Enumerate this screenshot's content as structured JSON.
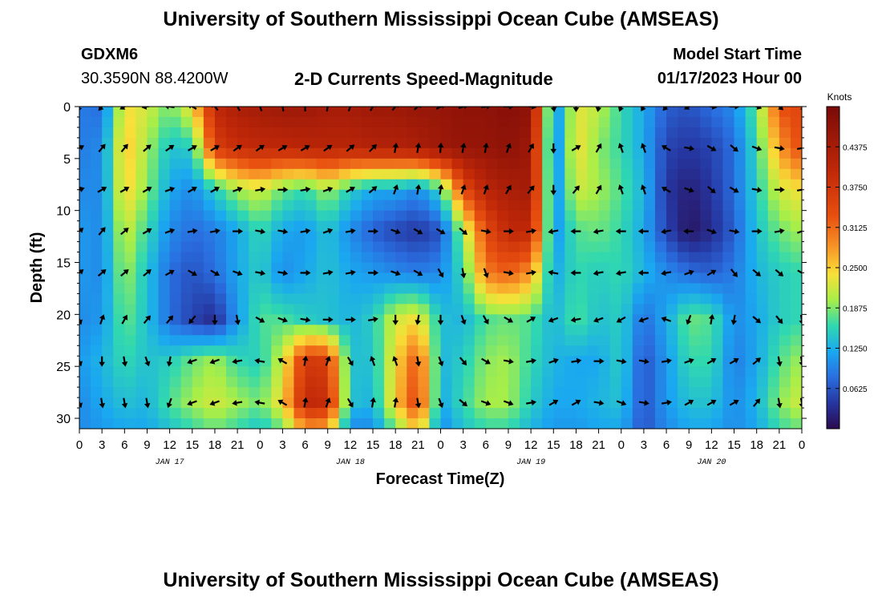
{
  "header": {
    "title": "University of Southern Mississippi Ocean Cube (AMSEAS)",
    "station_id": "GDXM6",
    "coords": "30.3590N  88.4200W",
    "product": "2-D Currents Speed-Magnitude",
    "model_start_label": "Model Start Time",
    "model_start_value": "01/17/2023 Hour 00"
  },
  "footer": {
    "title": "University of Southern Mississippi Ocean Cube (AMSEAS)"
  },
  "chart_data": {
    "type": "heatmap",
    "title": "2-D Currents Speed-Magnitude",
    "xlabel": "Forecast Time(Z)",
    "ylabel": "Depth (ft)",
    "x_tick_labels": [
      "0",
      "3",
      "6",
      "9",
      "12",
      "15",
      "18",
      "21",
      "0",
      "3",
      "6",
      "9",
      "12",
      "15",
      "18",
      "21",
      "0",
      "3",
      "6",
      "9",
      "12",
      "15",
      "18",
      "21",
      "0",
      "3",
      "6",
      "9",
      "12",
      "15",
      "18",
      "21",
      "0"
    ],
    "x_range_hours": [
      0,
      96
    ],
    "date_labels": [
      {
        "label": "JAN 17",
        "hour": 12
      },
      {
        "label": "JAN 18",
        "hour": 36
      },
      {
        "label": "JAN 19",
        "hour": 60
      },
      {
        "label": "JAN 20",
        "hour": 84
      }
    ],
    "y_ticks": [
      0,
      5,
      10,
      15,
      20,
      25,
      30
    ],
    "y_range_ft": [
      0,
      31
    ],
    "arrow_depths_ft": [
      0,
      4,
      8,
      12,
      16,
      20.5,
      24.5,
      28.5
    ],
    "colorbar": {
      "unit": "Knots",
      "range": [
        0,
        0.5
      ],
      "ticks": [
        "0.4375",
        "0.3750",
        "0.3125",
        "0.2500",
        "0.1875",
        "0.1250",
        "0.0625"
      ],
      "tick_values": [
        0.4375,
        0.375,
        0.3125,
        0.25,
        0.1875,
        0.125,
        0.0625
      ]
    },
    "speed_grid_knots": {
      "depths_ft": [
        0,
        4,
        8,
        12,
        16,
        20.5,
        24.5,
        28.5,
        31
      ],
      "hours": [
        0,
        3,
        6,
        9,
        12,
        15,
        18,
        21,
        24,
        27,
        30,
        33,
        36,
        39,
        42,
        45,
        48,
        51,
        54,
        57,
        60,
        63,
        66,
        69,
        72,
        75,
        78,
        81,
        84,
        87,
        90,
        93,
        96
      ],
      "rows": [
        [
          0.09,
          0.08,
          0.24,
          0.22,
          0.18,
          0.24,
          0.4,
          0.43,
          0.44,
          0.45,
          0.45,
          0.44,
          0.44,
          0.45,
          0.45,
          0.46,
          0.46,
          0.47,
          0.47,
          0.48,
          0.47,
          0.09,
          0.23,
          0.21,
          0.16,
          0.12,
          0.07,
          0.06,
          0.08,
          0.1,
          0.18,
          0.33,
          0.35
        ],
        [
          0.09,
          0.1,
          0.26,
          0.2,
          0.14,
          0.15,
          0.36,
          0.39,
          0.4,
          0.4,
          0.41,
          0.41,
          0.41,
          0.42,
          0.42,
          0.43,
          0.45,
          0.46,
          0.46,
          0.47,
          0.45,
          0.08,
          0.24,
          0.19,
          0.16,
          0.12,
          0.05,
          0.04,
          0.05,
          0.08,
          0.16,
          0.28,
          0.34
        ],
        [
          0.1,
          0.1,
          0.25,
          0.19,
          0.12,
          0.1,
          0.15,
          0.2,
          0.22,
          0.18,
          0.16,
          0.2,
          0.15,
          0.12,
          0.12,
          0.1,
          0.16,
          0.34,
          0.41,
          0.43,
          0.44,
          0.09,
          0.22,
          0.2,
          0.17,
          0.13,
          0.04,
          0.02,
          0.04,
          0.08,
          0.15,
          0.22,
          0.24
        ],
        [
          0.11,
          0.1,
          0.22,
          0.16,
          0.1,
          0.08,
          0.09,
          0.12,
          0.16,
          0.12,
          0.11,
          0.14,
          0.1,
          0.07,
          0.05,
          0.04,
          0.06,
          0.2,
          0.34,
          0.4,
          0.4,
          0.1,
          0.17,
          0.18,
          0.16,
          0.12,
          0.05,
          0.01,
          0.03,
          0.07,
          0.14,
          0.18,
          0.2
        ],
        [
          0.11,
          0.1,
          0.2,
          0.14,
          0.08,
          0.06,
          0.08,
          0.12,
          0.15,
          0.1,
          0.12,
          0.14,
          0.12,
          0.11,
          0.1,
          0.09,
          0.1,
          0.16,
          0.3,
          0.32,
          0.28,
          0.12,
          0.16,
          0.15,
          0.16,
          0.13,
          0.1,
          0.08,
          0.07,
          0.09,
          0.13,
          0.15,
          0.16
        ],
        [
          0.1,
          0.11,
          0.18,
          0.14,
          0.08,
          0.05,
          0.03,
          0.11,
          0.17,
          0.17,
          0.15,
          0.14,
          0.13,
          0.15,
          0.22,
          0.24,
          0.14,
          0.13,
          0.17,
          0.18,
          0.17,
          0.13,
          0.17,
          0.14,
          0.15,
          0.08,
          0.12,
          0.18,
          0.17,
          0.1,
          0.12,
          0.15,
          0.16
        ],
        [
          0.11,
          0.13,
          0.16,
          0.14,
          0.15,
          0.18,
          0.2,
          0.16,
          0.15,
          0.22,
          0.37,
          0.36,
          0.14,
          0.14,
          0.24,
          0.33,
          0.13,
          0.15,
          0.19,
          0.2,
          0.16,
          0.13,
          0.12,
          0.12,
          0.15,
          0.06,
          0.11,
          0.16,
          0.16,
          0.09,
          0.12,
          0.17,
          0.2
        ],
        [
          0.1,
          0.12,
          0.14,
          0.13,
          0.17,
          0.2,
          0.22,
          0.2,
          0.18,
          0.24,
          0.4,
          0.39,
          0.14,
          0.13,
          0.25,
          0.35,
          0.12,
          0.16,
          0.2,
          0.2,
          0.15,
          0.12,
          0.12,
          0.13,
          0.14,
          0.06,
          0.11,
          0.14,
          0.14,
          0.1,
          0.13,
          0.19,
          0.22
        ],
        [
          0.1,
          0.11,
          0.12,
          0.12,
          0.14,
          0.16,
          0.18,
          0.16,
          0.14,
          0.18,
          0.28,
          0.27,
          0.1,
          0.1,
          0.18,
          0.26,
          0.1,
          0.14,
          0.16,
          0.16,
          0.13,
          0.11,
          0.11,
          0.12,
          0.12,
          0.06,
          0.1,
          0.12,
          0.12,
          0.1,
          0.12,
          0.16,
          0.18
        ]
      ]
    },
    "current_direction_deg": {
      "depths_ft": [
        0,
        4,
        8,
        12,
        16,
        20.5,
        24.5,
        28.5
      ],
      "hours": [
        0,
        3,
        6,
        9,
        12,
        15,
        18,
        21,
        24,
        27,
        30,
        33,
        36,
        39,
        42,
        45,
        48,
        51,
        54,
        57,
        60,
        63,
        66,
        69,
        72,
        75,
        78,
        81,
        84,
        87,
        90,
        93,
        96
      ],
      "rows": [
        [
          200,
          220,
          240,
          260,
          280,
          300,
          320,
          330,
          340,
          350,
          0,
          10,
          20,
          30,
          40,
          50,
          60,
          70,
          80,
          90,
          100,
          170,
          180,
          190,
          200,
          210,
          220,
          240,
          100,
          90,
          110,
          130,
          140
        ],
        [
          60,
          40,
          40,
          50,
          55,
          60,
          60,
          55,
          55,
          60,
          60,
          55,
          50,
          45,
          10,
          10,
          5,
          10,
          10,
          20,
          30,
          180,
          60,
          30,
          340,
          340,
          300,
          100,
          120,
          130,
          110,
          100,
          80
        ],
        [
          70,
          60,
          60,
          60,
          70,
          60,
          60,
          70,
          80,
          90,
          80,
          70,
          60,
          50,
          20,
          10,
          10,
          20,
          20,
          30,
          40,
          180,
          40,
          30,
          340,
          340,
          300,
          110,
          130,
          120,
          100,
          90,
          80
        ],
        [
          50,
          40,
          50,
          60,
          70,
          80,
          80,
          90,
          100,
          100,
          80,
          70,
          80,
          90,
          110,
          120,
          120,
          130,
          100,
          90,
          80,
          260,
          270,
          260,
          270,
          270,
          260,
          270,
          110,
          100,
          90,
          80,
          70
        ],
        [
          50,
          50,
          50,
          50,
          60,
          120,
          120,
          110,
          100,
          100,
          90,
          80,
          80,
          90,
          110,
          120,
          150,
          170,
          160,
          100,
          80,
          280,
          270,
          260,
          260,
          270,
          260,
          70,
          60,
          140,
          130,
          130,
          120
        ],
        [
          160,
          20,
          30,
          40,
          40,
          220,
          180,
          170,
          120,
          110,
          100,
          90,
          90,
          80,
          180,
          190,
          180,
          160,
          150,
          120,
          60,
          250,
          260,
          250,
          240,
          250,
          290,
          200,
          10,
          190,
          130,
          140,
          170
        ],
        [
          160,
          180,
          170,
          160,
          190,
          250,
          250,
          260,
          280,
          300,
          10,
          20,
          150,
          340,
          340,
          170,
          160,
          140,
          120,
          100,
          80,
          70,
          80,
          90,
          100,
          100,
          80,
          70,
          60,
          60,
          50,
          170,
          170
        ],
        [
          160,
          170,
          170,
          170,
          200,
          250,
          250,
          260,
          280,
          300,
          10,
          20,
          150,
          10,
          10,
          170,
          160,
          130,
          110,
          110,
          80,
          60,
          60,
          100,
          110,
          100,
          80,
          60,
          60,
          60,
          40,
          170,
          170
        ]
      ]
    }
  }
}
